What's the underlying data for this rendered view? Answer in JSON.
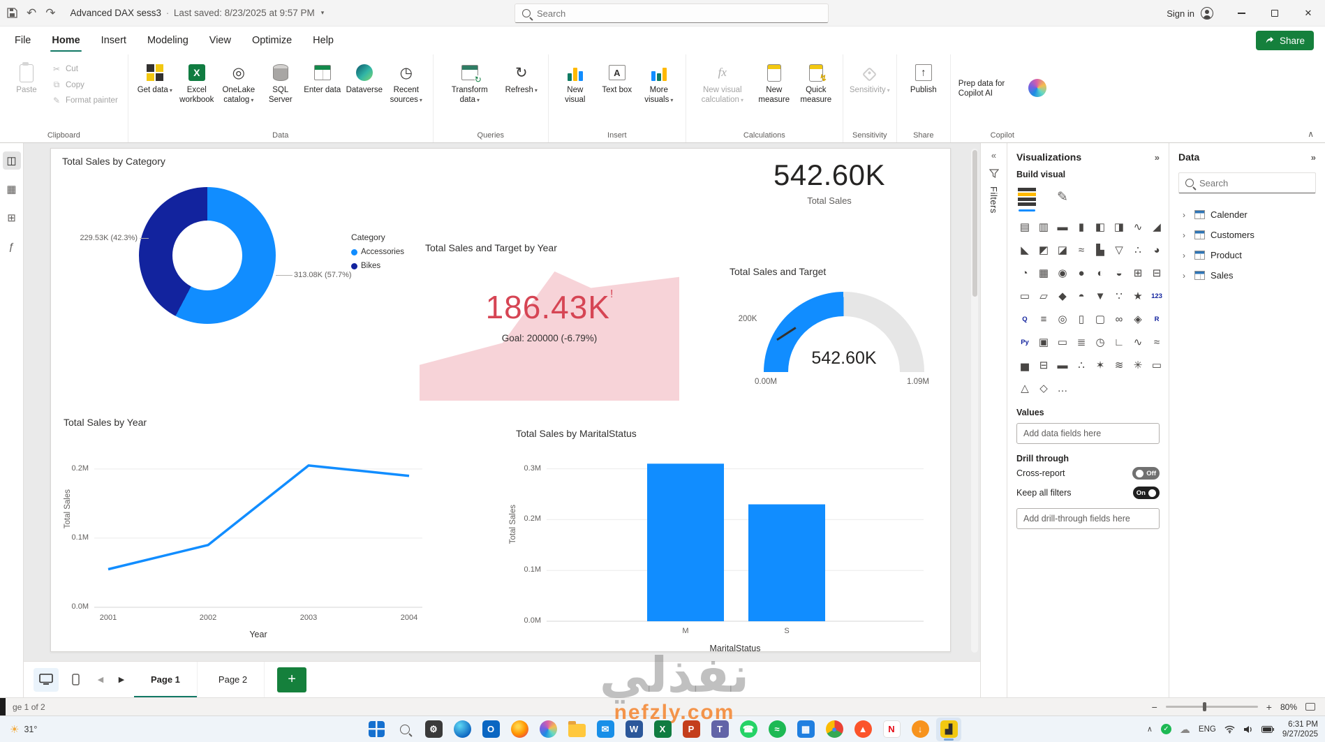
{
  "colors": {
    "accent": "#118DFF",
    "navy": "#12239E",
    "negative": "#D64554",
    "green": "#15803C"
  },
  "titlebar": {
    "doc_title": "Advanced DAX sess3",
    "separator": "∙",
    "last_saved": "Last saved: 8/23/2025 at 9:57 PM",
    "search_placeholder": "Search",
    "sign_in_label": "Sign in"
  },
  "menubar": {
    "items": [
      "File",
      "Home",
      "Insert",
      "Modeling",
      "View",
      "Optimize",
      "Help"
    ],
    "share_label": "Share"
  },
  "ribbon": {
    "clipboard": {
      "label": "Clipboard",
      "paste": "Paste",
      "cut": "Cut",
      "copy": "Copy",
      "format_painter": "Format painter"
    },
    "data": {
      "label": "Data",
      "get_data": "Get data",
      "excel_workbook": "Excel workbook",
      "onelake": "OneLake catalog",
      "sql_server": "SQL Server",
      "enter_data": "Enter data",
      "dataverse": "Dataverse",
      "recent_sources": "Recent sources"
    },
    "queries": {
      "label": "Queries",
      "transform": "Transform data",
      "refresh": "Refresh"
    },
    "insert_group": {
      "label": "Insert",
      "new_visual": "New visual",
      "text_box": "Text box",
      "more_visuals": "More visuals"
    },
    "calculations": {
      "label": "Calculations",
      "new_visual_calculation": "New visual calculation",
      "new_measure": "New measure",
      "quick_measure": "Quick measure"
    },
    "sensitivity": {
      "label": "Sensitivity",
      "button": "Sensitivity"
    },
    "share_group": {
      "label": "Share",
      "publish": "Publish"
    },
    "copilot": {
      "label": "Copilot",
      "prep": "Prep data for Copilot AI"
    }
  },
  "chart_data": [
    {
      "type": "donut",
      "title": "Total Sales by Category",
      "legend_title": "Category",
      "series": [
        {
          "name": "Accessories",
          "value": 313080,
          "pct": 57.7,
          "color": "#118DFF"
        },
        {
          "name": "Bikes",
          "value": 229530,
          "pct": 42.3,
          "color": "#12239E"
        }
      ],
      "labels": {
        "left": "229.53K (42.3%)",
        "right": "313.08K (57.7%)"
      }
    },
    {
      "type": "card",
      "title": "Total Sales",
      "value": "542.60K"
    },
    {
      "type": "kpi",
      "title": "Total Sales and Target by Year",
      "value": "186.43K",
      "alert": "!",
      "goal": "Goal: 200000 (-6.79%)",
      "value_color": "#D64554",
      "area_color": "#F5C8CE"
    },
    {
      "type": "gauge",
      "title": "Total Sales and Target",
      "value": "542.60K",
      "min_label": "0.00M",
      "max_label": "1.09M",
      "target_label": "200K",
      "fill_pct": 49.8,
      "color": "#118DFF"
    },
    {
      "type": "line",
      "title": "Total Sales by Year",
      "xlabel": "Year",
      "ylabel": "Total Sales",
      "x": [
        "2001",
        "2002",
        "2003",
        "2004"
      ],
      "values": [
        0.055,
        0.09,
        0.205,
        0.19
      ],
      "ylim": [
        0,
        0.22
      ],
      "yticks": [
        {
          "label": "0.2M",
          "v": 0.2
        },
        {
          "label": "0.1M",
          "v": 0.1
        },
        {
          "label": "0.0M",
          "v": 0.0
        }
      ],
      "color": "#118DFF"
    },
    {
      "type": "bar",
      "title": "Total Sales by MaritalStatus",
      "xlabel": "MaritalStatus",
      "ylabel": "Total Sales",
      "categories": [
        "M",
        "S"
      ],
      "values": [
        0.31,
        0.23
      ],
      "ylim": [
        0,
        0.32
      ],
      "yticks": [
        {
          "label": "0.3M",
          "v": 0.3
        },
        {
          "label": "0.2M",
          "v": 0.2
        },
        {
          "label": "0.1M",
          "v": 0.1
        },
        {
          "label": "0.0M",
          "v": 0.0
        }
      ],
      "color": "#118DFF"
    }
  ],
  "panels": {
    "filters": {
      "title": "Filters"
    },
    "visualizations": {
      "title": "Visualizations",
      "build_visual": "Build visual",
      "values_label": "Values",
      "add_fields": "Add data fields here",
      "drill_through": "Drill through",
      "cross_report": "Cross-report",
      "cross_report_state": "Off",
      "keep_all_filters": "Keep all filters",
      "keep_all_filters_state": "On",
      "add_drill_fields": "Add drill-through fields here",
      "more_glyph": "…",
      "visual_types": [
        {
          "n": "stacked-bar-chart",
          "g": "▤"
        },
        {
          "n": "stacked-column-chart",
          "g": "▥"
        },
        {
          "n": "clustered-bar-chart",
          "g": "▬"
        },
        {
          "n": "clustered-column-chart",
          "g": "▮"
        },
        {
          "n": "100-stacked-bar-chart",
          "g": "◧"
        },
        {
          "n": "100-stacked-column-chart",
          "g": "◨"
        },
        {
          "n": "line-chart",
          "g": "∿"
        },
        {
          "n": "area-chart",
          "g": "◢"
        },
        {
          "n": "stacked-area-chart",
          "g": "◣"
        },
        {
          "n": "line-and-stacked-column-chart",
          "g": "◩"
        },
        {
          "n": "line-and-clustered-column-chart",
          "g": "◪"
        },
        {
          "n": "ribbon-chart",
          "g": "≈"
        },
        {
          "n": "waterfall-chart",
          "g": "▙"
        },
        {
          "n": "funnel-chart",
          "g": "▽"
        },
        {
          "n": "scatter-chart",
          "g": "∴"
        },
        {
          "n": "pie-chart",
          "g": "◕"
        },
        {
          "n": "donut-chart",
          "g": "◔"
        },
        {
          "n": "treemap",
          "g": "▦"
        },
        {
          "n": "map",
          "g": "◉"
        },
        {
          "n": "filled-map",
          "g": "●"
        },
        {
          "n": "shape-map",
          "g": "◐"
        },
        {
          "n": "azure-map",
          "g": "◒"
        },
        {
          "n": "table",
          "g": "⊞"
        },
        {
          "n": "matrix",
          "g": "⊟"
        },
        {
          "n": "card",
          "g": "▭"
        },
        {
          "n": "multi-row-card",
          "g": "▱"
        },
        {
          "n": "kpi",
          "g": "◆"
        },
        {
          "n": "gauge",
          "g": "◓"
        },
        {
          "n": "slicer",
          "g": "▼"
        },
        {
          "n": "decomposition-tree",
          "g": "∵"
        },
        {
          "n": "key-influencers",
          "g": "★"
        },
        {
          "n": "new-card",
          "g": "123",
          "t": 1
        },
        {
          "n": "q-and-a",
          "g": "Q",
          "t": 1
        },
        {
          "n": "smart-narrative",
          "g": "≡"
        },
        {
          "n": "metrics",
          "g": "◎"
        },
        {
          "n": "paginated-report",
          "g": "▯"
        },
        {
          "n": "power-apps",
          "g": "▢"
        },
        {
          "n": "power-automate",
          "g": "∞"
        },
        {
          "n": "arcgis-map",
          "g": "◈"
        },
        {
          "n": "r-script-visual",
          "g": "R",
          "t": 1
        },
        {
          "n": "python-visual",
          "g": "Py",
          "t": 1
        },
        {
          "n": "button-slicer",
          "g": "▣"
        },
        {
          "n": "text-slicer",
          "g": "▭"
        },
        {
          "n": "list-slicer",
          "g": "≣"
        },
        {
          "n": "relative-date-slicer",
          "g": "◷"
        },
        {
          "n": "hierarchy-slicer",
          "g": "∟"
        },
        {
          "n": "scroller",
          "g": "∿"
        },
        {
          "n": "sparkline",
          "g": "≈"
        },
        {
          "n": "histogram",
          "g": "▅"
        },
        {
          "n": "box-plot",
          "g": "⊟"
        },
        {
          "n": "bullet-chart",
          "g": "▬"
        },
        {
          "n": "dot-plot",
          "g": "∴"
        },
        {
          "n": "radar-chart",
          "g": "✶"
        },
        {
          "n": "sankey",
          "g": "≋"
        },
        {
          "n": "word-cloud",
          "g": "✳"
        },
        {
          "n": "timeline",
          "g": "▭"
        },
        {
          "n": "anomaly-detection",
          "g": "△"
        },
        {
          "n": "get-more-visuals",
          "g": "◇"
        }
      ]
    },
    "data": {
      "title": "Data",
      "search_placeholder": "Search",
      "tables": [
        "Calender",
        "Customers",
        "Product",
        "Sales"
      ]
    }
  },
  "pages": {
    "tab1": "Page 1",
    "tab2": "Page 2"
  },
  "statusbar": {
    "page_indicator": "ge 1 of 2",
    "zoom": "80%"
  },
  "taskbar": {
    "weather": "31°",
    "tray_lang": "ENG",
    "time": "6:31 PM",
    "date": "9/27/2025",
    "apps": [
      {
        "n": "start",
        "shape": "win"
      },
      {
        "n": "search",
        "shape": "mag"
      },
      {
        "n": "settings",
        "g": "⚙",
        "bg": "#3a3a3a",
        "shape": "s"
      },
      {
        "n": "edge",
        "bg": "radial-gradient(circle at 35% 30%,#5fd8f4,#0c64c0 75%)",
        "shape": "c"
      },
      {
        "n": "outlook",
        "g": "O",
        "bg": "#0a66c2",
        "shape": "s"
      },
      {
        "n": "firefox",
        "bg": "radial-gradient(circle at 40% 35%,#ffd54a 10%,#ff9500 50%,#e3335a 95%)",
        "shape": "c"
      },
      {
        "n": "copilot",
        "bg": "conic-gradient(from 210deg,#1b8ce3,#7a5fe0,#d95fa8,#f6bd4f,#63d9c4,#1b8ce3)",
        "shape": "c"
      },
      {
        "n": "file-explorer",
        "shape": "folder"
      },
      {
        "n": "mail",
        "g": "✉",
        "bg": "#188fe8",
        "shape": "s"
      },
      {
        "n": "word",
        "g": "W",
        "bg": "#2b579a",
        "shape": "s"
      },
      {
        "n": "excel",
        "g": "X",
        "bg": "#107c41",
        "shape": "s"
      },
      {
        "n": "powerpoint",
        "g": "P",
        "bg": "#c43e1c",
        "shape": "s"
      },
      {
        "n": "teams",
        "g": "T",
        "bg": "#6264a7",
        "shape": "s"
      },
      {
        "n": "whatsapp",
        "g": "☎",
        "bg": "#25d366",
        "shape": "c"
      },
      {
        "n": "spotify",
        "g": "≈",
        "bg": "#1db954",
        "shape": "c"
      },
      {
        "n": "microsoft-store",
        "g": "▦",
        "bg": "#1f7fe0",
        "shape": "s"
      },
      {
        "n": "chrome",
        "g": "●",
        "fg": "#4285f4",
        "bg": "conic-gradient(#ea4335 0 120deg,#34a853 120deg 240deg,#fbbc05 240deg 360deg)",
        "shape": "c"
      },
      {
        "n": "brave",
        "g": "▲",
        "bg": "#fb542b",
        "shape": "c"
      },
      {
        "n": "netflix",
        "g": "N",
        "fg": "#e50914",
        "bg": "#ffffff",
        "shape": "s"
      },
      {
        "n": "downloads",
        "g": "↓",
        "bg": "#f7931e",
        "shape": "c"
      },
      {
        "n": "power-bi",
        "g": "▟",
        "bg": "#f2c811",
        "fg": "#2e2e2e",
        "shape": "s",
        "active": true
      }
    ]
  },
  "watermark": {
    "text": "نفذلي",
    "url": "nefzly.com"
  }
}
